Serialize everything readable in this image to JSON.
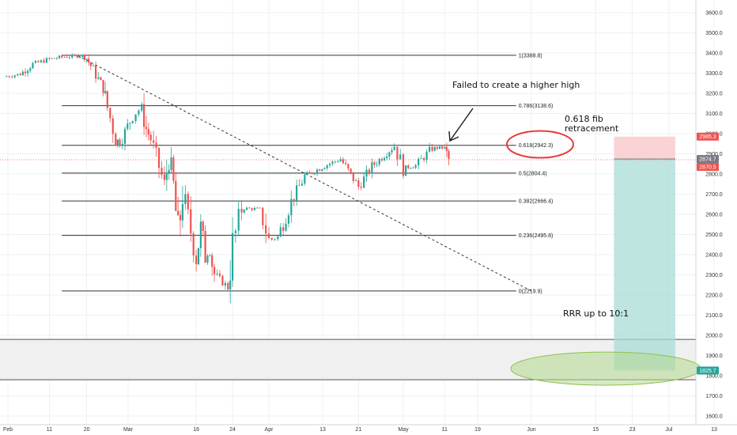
{
  "chart_data": {
    "type": "candlestick",
    "grid": true,
    "y_axis": {
      "position": "right",
      "scale": "linear",
      "range": [
        1550,
        3700
      ],
      "ticks": [
        "3600.0",
        "3500.0",
        "3400.0",
        "3300.0",
        "3200.0",
        "3100.0",
        "3000.0",
        "2900.0",
        "2800.0",
        "2700.0",
        "2600.0",
        "2500.0",
        "2400.0",
        "2300.0",
        "2200.0",
        "2100.0",
        "2000.0",
        "1900.0",
        "1800.0",
        "1700.0",
        "1600.0"
      ]
    },
    "x_axis": {
      "ticks": [
        "Feb",
        "11",
        "20",
        "Mar",
        "16",
        "24",
        "Apr",
        "13",
        "21",
        "May",
        "11",
        "19",
        "Jun",
        "15",
        "23",
        "Jul",
        "13"
      ]
    },
    "fib_levels": [
      {
        "ratio": 1,
        "label": "1(3388.8)",
        "value": 3388.8
      },
      {
        "ratio": 0.786,
        "label": "0.786(3138.6)",
        "value": 3138.6
      },
      {
        "ratio": 0.618,
        "label": "0.618(2942.3)",
        "value": 2942.3
      },
      {
        "ratio": 0.5,
        "label": "0.5(2804.4)",
        "value": 2804.4
      },
      {
        "ratio": 0.382,
        "label": "0.382(2666.4)",
        "value": 2666.4
      },
      {
        "ratio": 0.236,
        "label": "0.236(2495.8)",
        "value": 2495.8
      },
      {
        "ratio": 0,
        "label": "0(2219.9)",
        "value": 2219.9
      }
    ],
    "support_zone": {
      "high": 1980,
      "low": 1780
    },
    "trend_line": {
      "from": {
        "x": "Feb 18",
        "y": 3385
      },
      "to": {
        "x": "Jun 1",
        "y": 2220
      }
    },
    "position_tool": {
      "entry": 2874.7,
      "stop": 2985.3,
      "target": 1825.7
    },
    "price_tags": [
      {
        "text": "2985.3",
        "value": 2985.3,
        "color": "#ef5350"
      },
      {
        "text": "2874.7",
        "value": 2874.7,
        "color": "#787b86"
      },
      {
        "text": "2870.5",
        "value": 2870.5,
        "color": "#ef5350"
      },
      {
        "text": "1825.7",
        "value": 1825.7,
        "color": "#26a69a"
      }
    ],
    "current_price_line": 2870.5,
    "annotations": {
      "failed": "Failed to create a higher high",
      "fib_line1": "0.618 fib",
      "fib_line2": "retracement",
      "rrr": "RRR up to 10:1"
    },
    "price_path": [
      {
        "x": "Jan 31",
        "price": 3282
      },
      {
        "x": "Feb 4",
        "price": 3295
      },
      {
        "x": "Feb 7",
        "price": 3345
      },
      {
        "x": "Feb 11",
        "price": 3370
      },
      {
        "x": "Feb 14",
        "price": 3380
      },
      {
        "x": "Feb 19",
        "price": 3386
      },
      {
        "x": "Feb 20",
        "price": 3373
      },
      {
        "x": "Feb 21",
        "price": 3337
      },
      {
        "x": "Feb 24",
        "price": 3225
      },
      {
        "x": "Feb 25",
        "price": 3128
      },
      {
        "x": "Feb 27",
        "price": 2978
      },
      {
        "x": "Feb 28",
        "price": 2954
      },
      {
        "x": "Mar 2",
        "price": 3090
      },
      {
        "x": "Mar 4",
        "price": 3130
      },
      {
        "x": "Mar 5",
        "price": 3023
      },
      {
        "x": "Mar 6",
        "price": 2972
      },
      {
        "x": "Mar 9",
        "price": 2746
      },
      {
        "x": "Mar 10",
        "price": 2882
      },
      {
        "x": "Mar 11",
        "price": 2741
      },
      {
        "x": "Mar 12",
        "price": 2480
      },
      {
        "x": "Mar 13",
        "price": 2711
      },
      {
        "x": "Mar 16",
        "price": 2386
      },
      {
        "x": "Mar 17",
        "price": 2529
      },
      {
        "x": "Mar 18",
        "price": 2398
      },
      {
        "x": "Mar 19",
        "price": 2409
      },
      {
        "x": "Mar 20",
        "price": 2304
      },
      {
        "x": "Mar 23",
        "price": 2237
      },
      {
        "x": "Mar 24",
        "price": 2447
      },
      {
        "x": "Mar 26",
        "price": 2630
      },
      {
        "x": "Mar 30",
        "price": 2626
      },
      {
        "x": "Apr 1",
        "price": 2470
      },
      {
        "x": "Apr 3",
        "price": 2488
      },
      {
        "x": "Apr 6",
        "price": 2663
      },
      {
        "x": "Apr 9",
        "price": 2789
      },
      {
        "x": "Apr 14",
        "price": 2846
      },
      {
        "x": "Apr 17",
        "price": 2874
      },
      {
        "x": "Apr 21",
        "price": 2737
      },
      {
        "x": "Apr 24",
        "price": 2837
      },
      {
        "x": "Apr 29",
        "price": 2939
      },
      {
        "x": "May 1",
        "price": 2830
      },
      {
        "x": "May 4",
        "price": 2842
      },
      {
        "x": "May 8",
        "price": 2929
      },
      {
        "x": "May 11",
        "price": 2930
      },
      {
        "x": "May 12",
        "price": 2870
      }
    ]
  }
}
